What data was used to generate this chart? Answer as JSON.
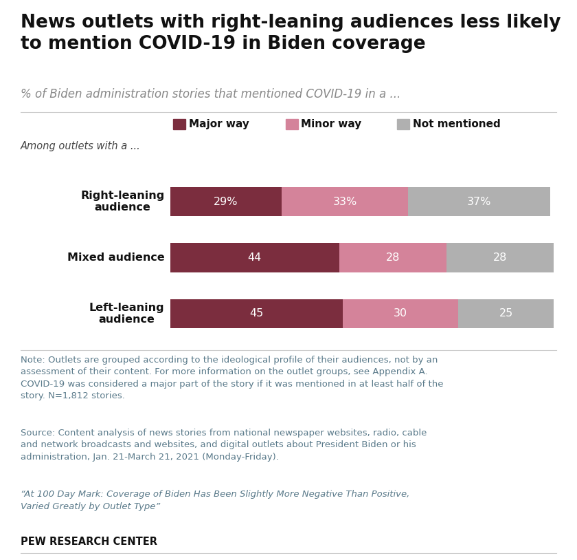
{
  "title": "News outlets with right-leaning audiences less likely\nto mention COVID-19 in Biden coverage",
  "subtitle": "% of Biden administration stories that mentioned COVID-19 in a ...",
  "group_label": "Among outlets with a ...",
  "categories": [
    "Right-leaning\naudience",
    "Mixed audience",
    "Left-leaning\naudience"
  ],
  "major_way": [
    29,
    44,
    45
  ],
  "minor_way": [
    33,
    28,
    30
  ],
  "not_mentioned": [
    37,
    28,
    25
  ],
  "major_way_labels": [
    "29%",
    "44",
    "45"
  ],
  "minor_way_labels": [
    "33%",
    "28",
    "30"
  ],
  "not_mentioned_labels": [
    "37%",
    "28",
    "25"
  ],
  "color_major": "#7b2d3e",
  "color_minor": "#d4839a",
  "color_not": "#b0b0b0",
  "legend_labels": [
    "Major way",
    "Minor way",
    "Not mentioned"
  ],
  "note_text": "Note: Outlets are grouped according to the ideological profile of their audiences, not by an\nassessment of their content. For more information on the outlet groups, see Appendix A.\nCOVID-19 was considered a major part of the story if it was mentioned in at least half of the\nstory. N=1,812 stories.",
  "source_text": "Source: Content analysis of news stories from national newspaper websites, radio, cable\nand network broadcasts and websites, and digital outlets about President Biden or his\nadministration, Jan. 21-March 21, 2021 (Monday-Friday).",
  "quote_text": "“At 100 Day Mark: Coverage of Biden Has Been Slightly More Negative Than Positive,\nVaried Greatly by Outlet Type”",
  "branding": "PEW RESEARCH CENTER",
  "background_color": "#ffffff",
  "text_color": "#5a7a8a",
  "title_color": "#111111",
  "bar_label_color": "#ffffff",
  "title_fontsize": 19,
  "subtitle_fontsize": 12,
  "legend_fontsize": 11,
  "cat_fontsize": 11.5,
  "bar_label_fontsize": 11.5,
  "note_fontsize": 9.5,
  "branding_fontsize": 10.5
}
